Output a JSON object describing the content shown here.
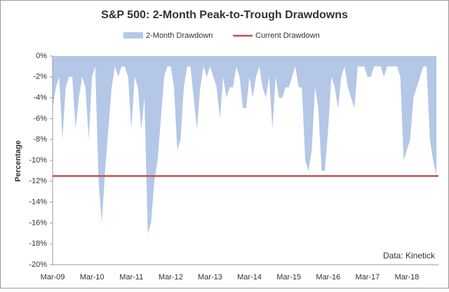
{
  "chart_data": {
    "type": "area",
    "title": "S&P 500: 2-Month Peak-to-Trough Drawdowns",
    "y_label": "Percentage",
    "annotation": "Data: Kinetick",
    "categories": [
      "Mar-09",
      null,
      null,
      null,
      null,
      null,
      null,
      null,
      null,
      null,
      null,
      null,
      "Mar-10",
      null,
      null,
      null,
      null,
      null,
      null,
      null,
      null,
      null,
      null,
      null,
      "Mar-11",
      null,
      null,
      null,
      null,
      null,
      null,
      null,
      null,
      null,
      null,
      null,
      "Mar-12",
      null,
      null,
      null,
      null,
      null,
      null,
      null,
      null,
      null,
      null,
      null,
      "Mar-13",
      null,
      null,
      null,
      null,
      null,
      null,
      null,
      null,
      null,
      null,
      null,
      "Mar-14",
      null,
      null,
      null,
      null,
      null,
      null,
      null,
      null,
      null,
      null,
      null,
      "Mar-15",
      null,
      null,
      null,
      null,
      null,
      null,
      null,
      null,
      null,
      null,
      null,
      "Mar-16",
      null,
      null,
      null,
      null,
      null,
      null,
      null,
      null,
      null,
      null,
      null,
      "Mar-17",
      null,
      null,
      null,
      null,
      null,
      null,
      null,
      null,
      null,
      null,
      null,
      "Mar-18",
      null,
      null,
      null,
      null,
      null,
      null,
      null,
      null,
      null
    ],
    "series": [
      {
        "name": "2-Month Drawdown",
        "color": "#b4c7e7",
        "values": [
          -5,
          -3,
          -2,
          -8,
          -3,
          -2,
          -2,
          -7,
          -4,
          -2,
          -3,
          -8,
          -2,
          -1,
          -12,
          -16,
          -11,
          -7,
          -3,
          -1,
          -2,
          -1,
          -1,
          -2,
          -7,
          -2,
          -3,
          -7,
          -4,
          -17,
          -16,
          -12,
          -10,
          -6,
          -2,
          -1,
          -1,
          -3,
          -9,
          -8,
          -3,
          -1,
          -1,
          -4,
          -7,
          -3,
          -1,
          -2,
          -1,
          -2,
          -3,
          -6,
          -2,
          -4,
          -3,
          -3,
          -1,
          -2,
          -5,
          -5,
          -2,
          -4,
          -2,
          -1,
          -3,
          -4,
          -2,
          -7,
          -2,
          -4,
          -4,
          -3,
          -3,
          -2,
          -1,
          -3,
          -3,
          -10,
          -11,
          -9,
          -3,
          -5,
          -11,
          -11,
          -7,
          -2,
          -3,
          -5,
          -2,
          -1,
          -3,
          -4,
          -5,
          -1,
          -1,
          -1,
          -2,
          -2,
          -1,
          -1,
          -1,
          -2,
          -1,
          -1,
          -1,
          -1,
          -2,
          -10,
          -9,
          -8,
          -4,
          -3,
          -2,
          -1,
          -1,
          -8,
          -10,
          -11.5
        ]
      }
    ],
    "current_drawdown": {
      "name": "Current Drawdown",
      "value": -11.5,
      "color": "#c0504d"
    },
    "ylim": [
      -20,
      0
    ],
    "yticks": [
      {
        "value": 0,
        "label": "0%"
      },
      {
        "value": -2,
        "label": "-2%"
      },
      {
        "value": -4,
        "label": "-4%"
      },
      {
        "value": -6,
        "label": "-6%"
      },
      {
        "value": -8,
        "label": "-8%"
      },
      {
        "value": -10,
        "label": "-10%"
      },
      {
        "value": -12,
        "label": "-12%"
      },
      {
        "value": -14,
        "label": "-14%"
      },
      {
        "value": -16,
        "label": "-16%"
      },
      {
        "value": -18,
        "label": "-18%"
      },
      {
        "value": -20,
        "label": "-20%"
      }
    ],
    "legend": "top"
  }
}
